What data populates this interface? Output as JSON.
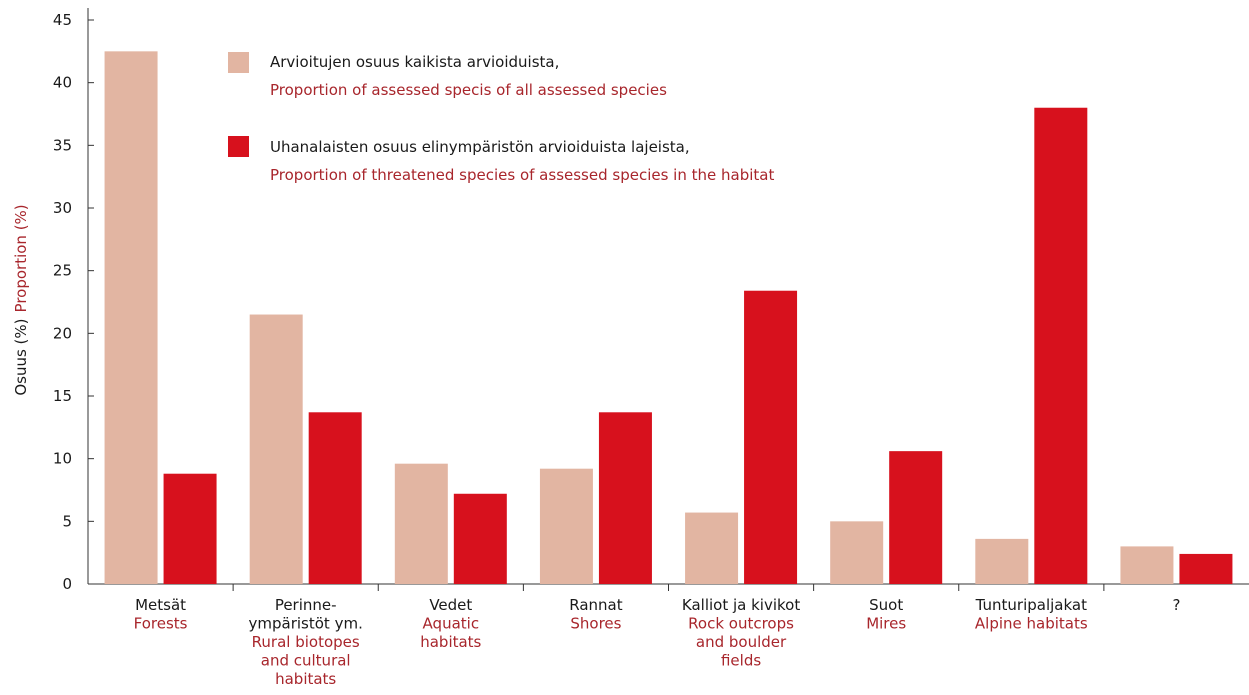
{
  "colors": {
    "assessed": "#e2b5a2",
    "threatened": "#d7111d",
    "english_text": "#a8262c",
    "axis": "#333333"
  },
  "chart_data": {
    "type": "bar",
    "ylabel_fi": "Osuus (%)",
    "ylabel_en": "Proportion (%)",
    "ylim": [
      0,
      45
    ],
    "yticks": [
      0,
      5,
      10,
      15,
      20,
      25,
      30,
      35,
      40,
      45
    ],
    "grid": false,
    "legend_placement": "top-left",
    "categories": [
      {
        "fi": [
          "Metsät"
        ],
        "en": [
          "Forests"
        ]
      },
      {
        "fi": [
          "Perinne-",
          "ympäristöt ym."
        ],
        "en": [
          "Rural biotopes",
          "and cultural",
          "habitats"
        ]
      },
      {
        "fi": [
          "Vedet"
        ],
        "en": [
          "Aquatic",
          "habitats"
        ]
      },
      {
        "fi": [
          "Rannat"
        ],
        "en": [
          "Shores"
        ]
      },
      {
        "fi": [
          "Kalliot ja kivikot"
        ],
        "en": [
          "Rock outcrops",
          "and boulder",
          "fields"
        ]
      },
      {
        "fi": [
          "Suot"
        ],
        "en": [
          "Mires"
        ]
      },
      {
        "fi": [
          "Tunturipaljakat"
        ],
        "en": [
          "Alpine habitats"
        ]
      },
      {
        "fi": [
          "?"
        ],
        "en": []
      }
    ],
    "series": [
      {
        "name_fi": "Arvioitujen osuus kaikista arvioiduista,",
        "name_en": "Proportion of assessed specis of all assessed species",
        "color": "#e2b5a2",
        "values": [
          42.5,
          21.5,
          9.6,
          9.2,
          5.7,
          5.0,
          3.6,
          3.0
        ]
      },
      {
        "name_fi": "Uhanalaisten osuus elinympäristön arvioiduista lajeista,",
        "name_en": "Proportion of threatened species of assessed species in the habitat",
        "color": "#d7111d",
        "values": [
          8.8,
          13.7,
          7.2,
          13.7,
          23.4,
          10.6,
          38.0,
          2.4
        ]
      }
    ]
  }
}
